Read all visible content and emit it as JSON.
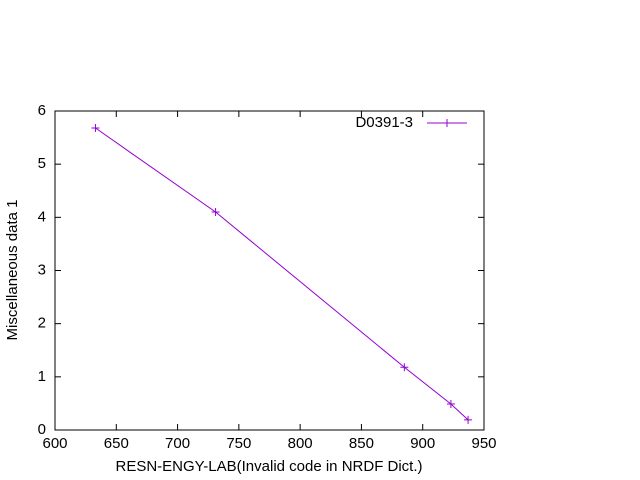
{
  "chart_data": {
    "type": "line",
    "xlabel": "RESN-ENGY-LAB(Invalid code in NRDF Dict.)",
    "ylabel": "Miscellaneous data 1",
    "x": [
      633,
      731,
      885,
      923,
      937
    ],
    "series": [
      {
        "name": "D0391-3",
        "color": "#9400d3",
        "values": [
          5.68,
          4.1,
          1.18,
          0.49,
          0.19
        ]
      }
    ],
    "xlim": [
      600,
      950
    ],
    "xticks": [
      600,
      650,
      700,
      750,
      800,
      850,
      900,
      950
    ],
    "ylim": [
      0,
      6
    ],
    "yticks": [
      0,
      1,
      2,
      3,
      4,
      5,
      6
    ],
    "legend": "top-right",
    "marker": "+"
  }
}
